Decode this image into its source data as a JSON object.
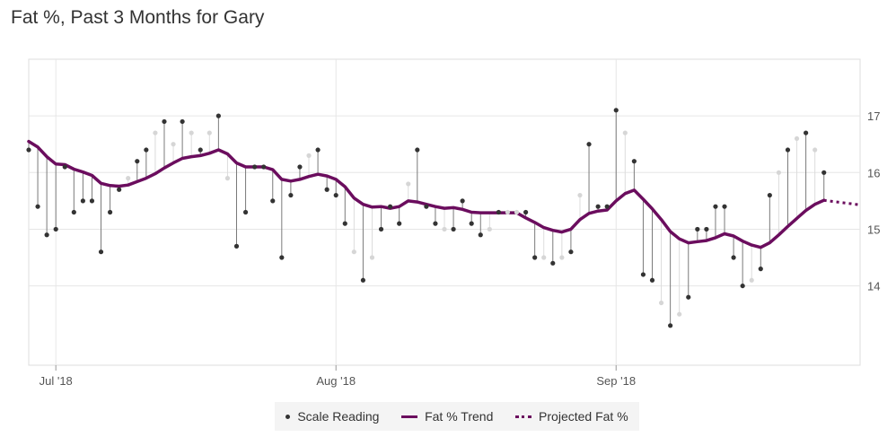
{
  "chart_data": {
    "type": "line",
    "title": "Fat %, Past 3 Months for Gary",
    "xlabel": "",
    "ylabel": "",
    "x_start": "2018-06-28",
    "x_end": "2018-09-28",
    "ylim": [
      12.6,
      18.0
    ],
    "y_ticks": [
      14,
      15,
      16,
      17
    ],
    "x_ticks": [
      {
        "label": "Jul '18",
        "date": "2018-07-01"
      },
      {
        "label": "Aug '18",
        "date": "2018-08-01"
      },
      {
        "label": "Sep '18",
        "date": "2018-09-01"
      }
    ],
    "grid": true,
    "legend_position": "bottom-center",
    "colors": {
      "trend": "#6b0d5e",
      "reading": "#333333",
      "stem": "#7a7a7a",
      "faded": "#d6d6d6",
      "grid": "#e6e6e6"
    },
    "legend": [
      {
        "label": "Scale Reading",
        "style": "dot"
      },
      {
        "label": "Fat % Trend",
        "style": "line"
      },
      {
        "label": "Projected Fat %",
        "style": "dotted"
      }
    ],
    "series": [
      {
        "name": "Fat % Trend",
        "style": "line",
        "points": [
          [
            "2018-06-28",
            16.55
          ],
          [
            "2018-06-29",
            16.45
          ],
          [
            "2018-06-30",
            16.28
          ],
          [
            "2018-07-01",
            16.15
          ],
          [
            "2018-07-02",
            16.14
          ],
          [
            "2018-07-03",
            16.06
          ],
          [
            "2018-07-04",
            16.01
          ],
          [
            "2018-07-05",
            15.95
          ],
          [
            "2018-07-06",
            15.81
          ],
          [
            "2018-07-07",
            15.77
          ],
          [
            "2018-07-08",
            15.76
          ],
          [
            "2018-07-09",
            15.78
          ],
          [
            "2018-07-10",
            15.84
          ],
          [
            "2018-07-11",
            15.9
          ],
          [
            "2018-07-12",
            15.98
          ],
          [
            "2018-07-13",
            16.08
          ],
          [
            "2018-07-14",
            16.17
          ],
          [
            "2018-07-15",
            16.25
          ],
          [
            "2018-07-16",
            16.28
          ],
          [
            "2018-07-17",
            16.3
          ],
          [
            "2018-07-18",
            16.34
          ],
          [
            "2018-07-19",
            16.4
          ],
          [
            "2018-07-20",
            16.33
          ],
          [
            "2018-07-21",
            16.17
          ],
          [
            "2018-07-22",
            16.1
          ],
          [
            "2018-07-23",
            16.1
          ],
          [
            "2018-07-24",
            16.1
          ],
          [
            "2018-07-25",
            16.05
          ],
          [
            "2018-07-26",
            15.88
          ],
          [
            "2018-07-27",
            15.85
          ],
          [
            "2018-07-28",
            15.88
          ],
          [
            "2018-07-29",
            15.93
          ],
          [
            "2018-07-30",
            15.97
          ],
          [
            "2018-07-31",
            15.94
          ],
          [
            "2018-08-01",
            15.88
          ],
          [
            "2018-08-02",
            15.75
          ],
          [
            "2018-08-03",
            15.55
          ],
          [
            "2018-08-04",
            15.44
          ],
          [
            "2018-08-05",
            15.39
          ],
          [
            "2018-08-06",
            15.4
          ],
          [
            "2018-08-07",
            15.37
          ],
          [
            "2018-08-08",
            15.4
          ],
          [
            "2018-08-09",
            15.5
          ],
          [
            "2018-08-10",
            15.48
          ],
          [
            "2018-08-11",
            15.44
          ],
          [
            "2018-08-12",
            15.4
          ],
          [
            "2018-08-13",
            15.37
          ],
          [
            "2018-08-14",
            15.38
          ],
          [
            "2018-08-15",
            15.35
          ],
          [
            "2018-08-16",
            15.3
          ],
          [
            "2018-08-17",
            15.29
          ],
          [
            "2018-08-18",
            15.29
          ],
          [
            "2018-08-19",
            15.29
          ],
          [
            "2018-08-20",
            15.29
          ],
          [
            "2018-08-21",
            15.29
          ],
          [
            "2018-08-22",
            15.2
          ],
          [
            "2018-08-23",
            15.12
          ],
          [
            "2018-08-24",
            15.03
          ],
          [
            "2018-08-25",
            14.98
          ],
          [
            "2018-08-26",
            14.95
          ],
          [
            "2018-08-27",
            15.0
          ],
          [
            "2018-08-28",
            15.17
          ],
          [
            "2018-08-29",
            15.28
          ],
          [
            "2018-08-30",
            15.32
          ],
          [
            "2018-08-31",
            15.34
          ],
          [
            "2018-09-01",
            15.5
          ],
          [
            "2018-09-02",
            15.63
          ],
          [
            "2018-09-03",
            15.69
          ],
          [
            "2018-09-04",
            15.53
          ],
          [
            "2018-09-05",
            15.36
          ],
          [
            "2018-09-06",
            15.17
          ],
          [
            "2018-09-07",
            14.96
          ],
          [
            "2018-09-08",
            14.83
          ],
          [
            "2018-09-09",
            14.76
          ],
          [
            "2018-09-10",
            14.78
          ],
          [
            "2018-09-11",
            14.8
          ],
          [
            "2018-09-12",
            14.85
          ],
          [
            "2018-09-13",
            14.92
          ],
          [
            "2018-09-14",
            14.88
          ],
          [
            "2018-09-15",
            14.79
          ],
          [
            "2018-09-16",
            14.72
          ],
          [
            "2018-09-17",
            14.68
          ],
          [
            "2018-09-18",
            14.76
          ],
          [
            "2018-09-19",
            14.9
          ],
          [
            "2018-09-20",
            15.05
          ],
          [
            "2018-09-21",
            15.19
          ],
          [
            "2018-09-22",
            15.33
          ],
          [
            "2018-09-23",
            15.44
          ],
          [
            "2018-09-24",
            15.51
          ]
        ]
      },
      {
        "name": "Projected Fat %",
        "style": "dotted",
        "points": [
          [
            "2018-09-24",
            15.51
          ],
          [
            "2018-09-25",
            15.49
          ],
          [
            "2018-09-26",
            15.47
          ],
          [
            "2018-09-27",
            15.45
          ],
          [
            "2018-09-28",
            15.43
          ]
        ]
      },
      {
        "name": "Scale Reading",
        "style": "dots",
        "points": [
          [
            "2018-06-28",
            16.4
          ],
          [
            "2018-06-29",
            15.4
          ],
          [
            "2018-06-30",
            14.9
          ],
          [
            "2018-07-01",
            15.0
          ],
          [
            "2018-07-02",
            16.1
          ],
          [
            "2018-07-03",
            15.3
          ],
          [
            "2018-07-04",
            15.5
          ],
          [
            "2018-07-05",
            15.5
          ],
          [
            "2018-07-06",
            14.6
          ],
          [
            "2018-07-07",
            15.3
          ],
          [
            "2018-07-08",
            15.7
          ],
          [
            "2018-07-10",
            16.2
          ],
          [
            "2018-07-11",
            16.4
          ],
          [
            "2018-07-13",
            16.9
          ],
          [
            "2018-07-15",
            16.9
          ],
          [
            "2018-07-17",
            16.4
          ],
          [
            "2018-07-19",
            17.0
          ],
          [
            "2018-07-21",
            14.7
          ],
          [
            "2018-07-22",
            15.3
          ],
          [
            "2018-07-23",
            16.1
          ],
          [
            "2018-07-24",
            16.1
          ],
          [
            "2018-07-25",
            15.5
          ],
          [
            "2018-07-26",
            14.5
          ],
          [
            "2018-07-27",
            15.6
          ],
          [
            "2018-07-28",
            16.1
          ],
          [
            "2018-07-30",
            16.4
          ],
          [
            "2018-07-31",
            15.7
          ],
          [
            "2018-08-01",
            15.6
          ],
          [
            "2018-08-02",
            15.1
          ],
          [
            "2018-08-04",
            14.1
          ],
          [
            "2018-08-06",
            15.0
          ],
          [
            "2018-08-07",
            15.4
          ],
          [
            "2018-08-08",
            15.1
          ],
          [
            "2018-08-10",
            16.4
          ],
          [
            "2018-08-11",
            15.4
          ],
          [
            "2018-08-12",
            15.1
          ],
          [
            "2018-08-14",
            15.0
          ],
          [
            "2018-08-15",
            15.5
          ],
          [
            "2018-08-16",
            15.1
          ],
          [
            "2018-08-17",
            14.9
          ],
          [
            "2018-08-19",
            15.3
          ],
          [
            "2018-08-22",
            15.3
          ],
          [
            "2018-08-23",
            14.5
          ],
          [
            "2018-08-25",
            14.4
          ],
          [
            "2018-08-27",
            14.6
          ],
          [
            "2018-08-29",
            16.5
          ],
          [
            "2018-08-30",
            15.4
          ],
          [
            "2018-08-31",
            15.4
          ],
          [
            "2018-09-01",
            17.1
          ],
          [
            "2018-09-03",
            16.2
          ],
          [
            "2018-09-04",
            14.2
          ],
          [
            "2018-09-05",
            14.1
          ],
          [
            "2018-09-07",
            13.3
          ],
          [
            "2018-09-09",
            13.8
          ],
          [
            "2018-09-10",
            15.0
          ],
          [
            "2018-09-11",
            15.0
          ],
          [
            "2018-09-12",
            15.4
          ],
          [
            "2018-09-13",
            15.4
          ],
          [
            "2018-09-14",
            14.5
          ],
          [
            "2018-09-15",
            14.0
          ],
          [
            "2018-09-17",
            14.3
          ],
          [
            "2018-09-18",
            15.6
          ],
          [
            "2018-09-20",
            16.4
          ],
          [
            "2018-09-22",
            16.7
          ],
          [
            "2018-09-24",
            16.0
          ]
        ]
      },
      {
        "name": "Faded Reading",
        "style": "faded",
        "points": [
          [
            "2018-07-09",
            15.9
          ],
          [
            "2018-07-12",
            16.7
          ],
          [
            "2018-07-14",
            16.5
          ],
          [
            "2018-07-16",
            16.7
          ],
          [
            "2018-07-18",
            16.7
          ],
          [
            "2018-07-20",
            15.9
          ],
          [
            "2018-07-29",
            16.3
          ],
          [
            "2018-08-03",
            14.6
          ],
          [
            "2018-08-05",
            14.5
          ],
          [
            "2018-08-09",
            15.8
          ],
          [
            "2018-08-13",
            15.0
          ],
          [
            "2018-08-18",
            15.0
          ],
          [
            "2018-08-20",
            15.3
          ],
          [
            "2018-08-21",
            15.3
          ],
          [
            "2018-08-24",
            14.5
          ],
          [
            "2018-08-26",
            14.5
          ],
          [
            "2018-08-28",
            15.6
          ],
          [
            "2018-09-02",
            16.7
          ],
          [
            "2018-09-06",
            13.7
          ],
          [
            "2018-09-08",
            13.5
          ],
          [
            "2018-09-16",
            14.1
          ],
          [
            "2018-09-19",
            16.0
          ],
          [
            "2018-09-21",
            16.6
          ],
          [
            "2018-09-23",
            16.4
          ]
        ]
      }
    ]
  }
}
